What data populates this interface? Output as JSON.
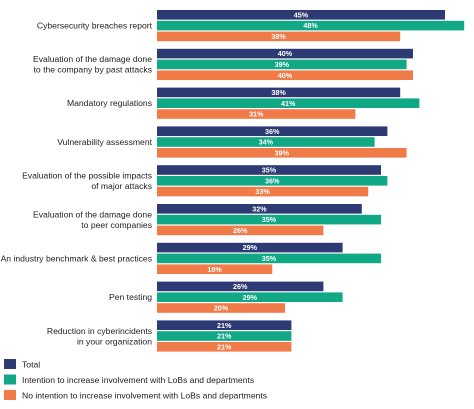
{
  "chart_data": {
    "type": "bar",
    "orientation": "horizontal",
    "categories": [
      "Cybersecurity breaches report",
      "Evaluation of the damage done to the company by past attacks",
      "Mandatory regulations",
      "Vulnerability assessment",
      "Evaluation of the possible impacts of major attacks",
      "Evaluation of the damage done to peer companies",
      "An industry benchmark & best practices",
      "Pen testing",
      "Reduction in cyberincidents in your organization"
    ],
    "category_lines": [
      [
        "Cybersecurity breaches report"
      ],
      [
        "Evaluation of the damage done",
        "to the company by past attacks"
      ],
      [
        "Mandatory regulations"
      ],
      [
        "Vulnerability assessment"
      ],
      [
        "Evaluation of the possible impacts",
        "of major attacks"
      ],
      [
        "Evaluation of the damage done",
        "to peer companies"
      ],
      [
        "An industry benchmark & best practices"
      ],
      [
        "Pen testing"
      ],
      [
        "Reduction in cyberincidents",
        "in your organization"
      ]
    ],
    "series": [
      {
        "name": "Total",
        "color": "#2e3a73",
        "values": [
          45,
          40,
          38,
          36,
          35,
          32,
          29,
          26,
          21
        ],
        "labels": [
          "45%",
          "40%",
          "38%",
          "36%",
          "35%",
          "32%",
          "29%",
          "26%",
          "21%"
        ]
      },
      {
        "name": "Intention to increase involvement with LoBs and departments",
        "color": "#10a885",
        "values": [
          48,
          39,
          41,
          34,
          36,
          35,
          35,
          29,
          21
        ],
        "labels": [
          "48%",
          "39%",
          "41%",
          "34%",
          "36%",
          "35%",
          "35%",
          "29%",
          "21%"
        ]
      },
      {
        "name": "No intention to increase involvement with LoBs and departments",
        "color": "#f07a48",
        "values": [
          38,
          40,
          31,
          39,
          33,
          26,
          18,
          20,
          21
        ],
        "labels": [
          "38%",
          "40%",
          "31%",
          "39%",
          "33%",
          "26%",
          "18%",
          "20%",
          "21%"
        ]
      }
    ],
    "xlim": [
      0,
      50
    ],
    "grid": false,
    "legend_position": "bottom-left",
    "value_labels": "inside-bar-end"
  }
}
